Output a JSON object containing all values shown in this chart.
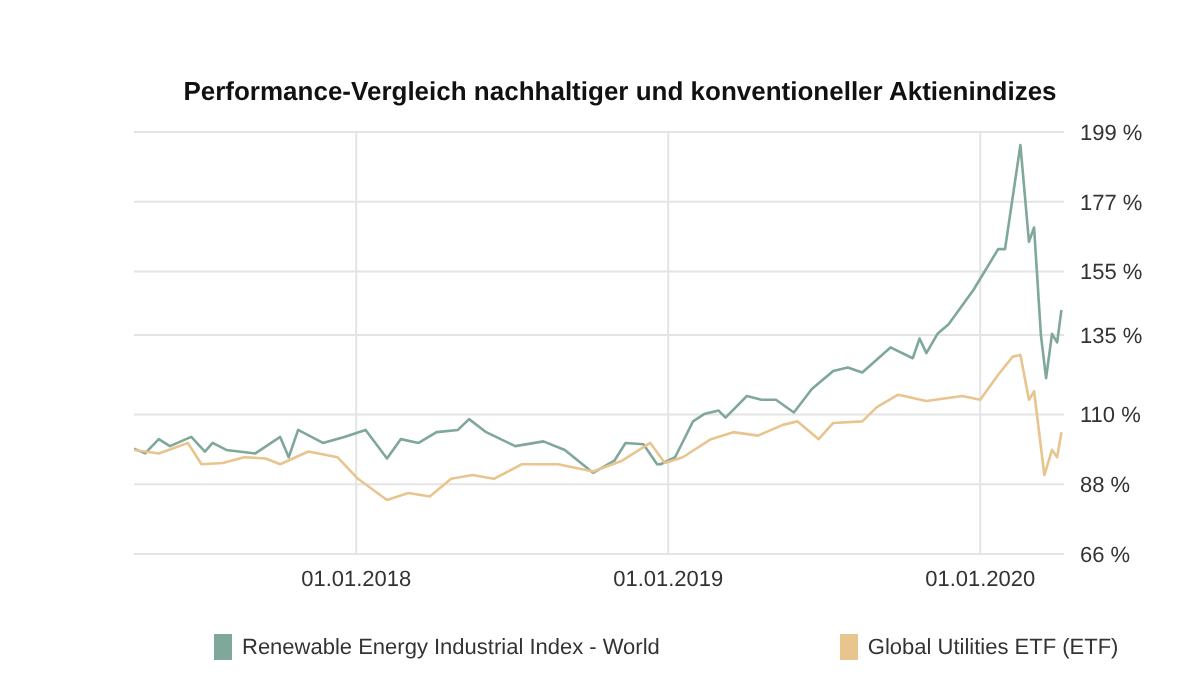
{
  "chart_data": {
    "type": "line",
    "title": "Performance-Vergleich nachhaltiger und konventioneller Aktienindizes",
    "xlim": [
      "2017-04-16",
      "2020-04-08"
    ],
    "xticks": [
      {
        "value": "2018-01-01",
        "label": "01.01.2018"
      },
      {
        "value": "2019-01-01",
        "label": "01.01.2019"
      },
      {
        "value": "2020-01-01",
        "label": "01.01.2020"
      }
    ],
    "ylim": [
      66,
      199
    ],
    "yticks": [
      {
        "value": 66,
        "label": "66 %"
      },
      {
        "value": 88,
        "label": "88 %"
      },
      {
        "value": 110,
        "label": "110 %"
      },
      {
        "value": 135,
        "label": "135 %"
      },
      {
        "value": 155,
        "label": "155 %"
      },
      {
        "value": 177,
        "label": "177 %"
      },
      {
        "value": 199,
        "label": "199 %"
      }
    ],
    "grid": true,
    "legend": "bottom",
    "series": [
      {
        "name": "Renewable Energy Industrial Index - World",
        "color": "#7fa89a",
        "x": [
          "2017-04-16",
          "2017-04-29",
          "2017-05-15",
          "2017-05-28",
          "2017-06-22",
          "2017-07-08",
          "2017-07-17",
          "2017-08-02",
          "2017-09-05",
          "2017-10-04",
          "2017-10-14",
          "2017-10-25",
          "2017-11-23",
          "2017-12-18",
          "2018-01-12",
          "2018-02-06",
          "2018-02-22",
          "2018-03-15",
          "2018-04-05",
          "2018-04-30",
          "2018-05-13",
          "2018-06-02",
          "2018-07-06",
          "2018-08-08",
          "2018-09-02",
          "2018-10-05",
          "2018-10-30",
          "2018-11-12",
          "2018-12-03",
          "2018-12-19",
          "2018-12-23",
          "2019-01-09",
          "2019-01-30",
          "2019-02-12",
          "2019-03-01",
          "2019-03-09",
          "2019-04-03",
          "2019-04-20",
          "2019-05-07",
          "2019-05-28",
          "2019-06-18",
          "2019-07-13",
          "2019-07-30",
          "2019-08-16",
          "2019-09-18",
          "2019-10-14",
          "2019-10-22",
          "2019-10-30",
          "2019-11-12",
          "2019-11-25",
          "2019-12-24",
          "2020-01-22",
          "2020-01-30",
          "2020-02-17",
          "2020-02-27",
          "2020-03-04",
          "2020-03-12",
          "2020-03-18",
          "2020-03-25",
          "2020-03-31",
          "2020-04-05"
        ],
        "values": [
          99.2,
          97.7,
          102.2,
          100,
          102.9,
          98.3,
          101,
          98.8,
          97.7,
          102.9,
          96.5,
          105.1,
          101,
          102.9,
          105.1,
          96.1,
          102.2,
          101,
          104.4,
          105.1,
          108.5,
          104.4,
          100,
          101.5,
          98.8,
          91.6,
          95.4,
          101,
          100.6,
          94.3,
          94.3,
          96.5,
          107.8,
          110.1,
          111.2,
          109,
          115.8,
          114.6,
          114.6,
          110.6,
          118,
          123.7,
          124.8,
          123.2,
          131.1,
          127.7,
          133.9,
          129.3,
          135.4,
          138.4,
          149.2,
          162.1,
          162.1,
          194.9,
          164.4,
          168.9,
          135,
          121.4,
          135.4,
          132.7,
          142.9
        ]
      },
      {
        "name": "Global Utilities ETF (ETF)",
        "color": "#e8c58f",
        "x": [
          "2017-04-16",
          "2017-05-15",
          "2017-06-18",
          "2017-07-04",
          "2017-07-29",
          "2017-08-23",
          "2017-09-17",
          "2017-10-04",
          "2017-11-06",
          "2017-12-10",
          "2018-01-03",
          "2018-02-06",
          "2018-03-03",
          "2018-03-28",
          "2018-04-22",
          "2018-05-17",
          "2018-06-11",
          "2018-07-14",
          "2018-08-25",
          "2018-10-05",
          "2018-11-08",
          "2018-12-11",
          "2018-12-28",
          "2019-01-18",
          "2019-02-20",
          "2019-03-18",
          "2019-04-16",
          "2019-05-15",
          "2019-06-01",
          "2019-06-26",
          "2019-07-13",
          "2019-08-16",
          "2019-09-02",
          "2019-09-27",
          "2019-10-30",
          "2019-12-11",
          "2020-01-01",
          "2020-01-22",
          "2020-02-08",
          "2020-02-17",
          "2020-02-27",
          "2020-03-04",
          "2020-03-16",
          "2020-03-25",
          "2020-03-31",
          "2020-04-05"
        ],
        "values": [
          98.8,
          97.7,
          101,
          94.3,
          94.7,
          96.5,
          96.1,
          94.3,
          98.3,
          96.5,
          89.7,
          83,
          85.2,
          84.1,
          89.7,
          90.9,
          89.7,
          94.3,
          94.3,
          92,
          95.4,
          101,
          94.7,
          96.5,
          102.2,
          104.4,
          103.3,
          106.7,
          107.8,
          102.2,
          107.3,
          107.8,
          112.3,
          116.2,
          114.2,
          115.8,
          114.6,
          122.5,
          128.2,
          128.7,
          114.6,
          117.3,
          90.9,
          98.8,
          96.5,
          104.4
        ]
      }
    ]
  }
}
